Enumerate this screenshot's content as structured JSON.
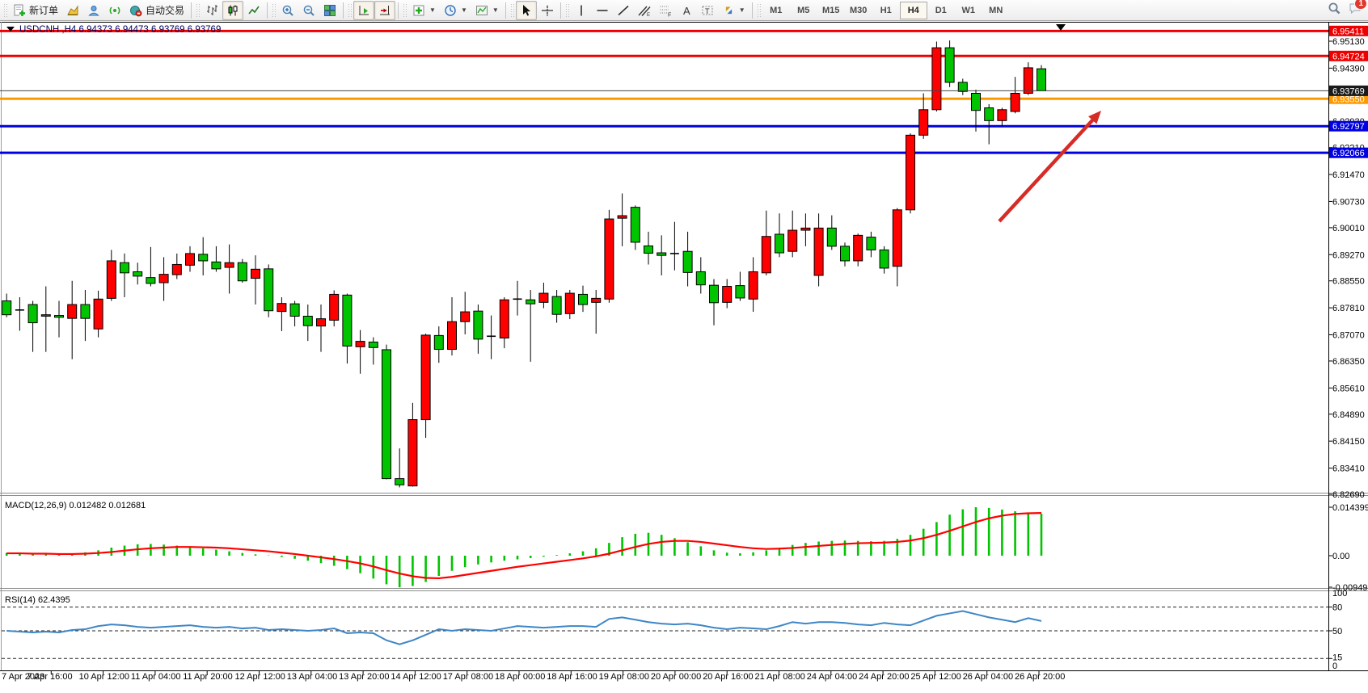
{
  "toolbar": {
    "groups": [
      {
        "items": [
          {
            "icon": "new-order-icon",
            "label": "新订单",
            "name": "new-order-button"
          },
          {
            "icon": "market-chart-icon",
            "name": "chart-window-button"
          },
          {
            "icon": "community-icon",
            "name": "community-button"
          },
          {
            "icon": "signals-icon",
            "name": "signals-button"
          },
          {
            "icon": "autotrading-icon",
            "label": "自动交易",
            "name": "autotrading-button"
          }
        ]
      },
      {
        "items": [
          {
            "icon": "bar-chart-icon",
            "name": "bar-chart-button"
          },
          {
            "icon": "candlestick-icon",
            "name": "candlestick-button",
            "active": true
          },
          {
            "icon": "line-chart-icon",
            "name": "line-chart-button"
          }
        ]
      },
      {
        "items": [
          {
            "icon": "zoom-in-icon",
            "name": "zoom-in-button"
          },
          {
            "icon": "zoom-out-icon",
            "name": "zoom-out-button"
          },
          {
            "icon": "tile-windows-icon",
            "name": "tile-windows-button"
          }
        ]
      },
      {
        "items": [
          {
            "icon": "auto-scroll-icon",
            "name": "auto-scroll-button",
            "active": true
          },
          {
            "icon": "chart-shift-icon",
            "name": "chart-shift-button",
            "active": true
          }
        ]
      },
      {
        "items": [
          {
            "icon": "indicators-icon",
            "name": "indicators-button",
            "dropdown": true
          },
          {
            "icon": "periods-icon",
            "name": "periods-button",
            "dropdown": true
          },
          {
            "icon": "templates-icon",
            "name": "templates-button",
            "dropdown": true
          }
        ]
      },
      {
        "items": [
          {
            "icon": "cursor-icon",
            "name": "cursor-button",
            "active": true
          },
          {
            "icon": "crosshair-icon",
            "name": "crosshair-button"
          }
        ]
      },
      {
        "items": [
          {
            "icon": "vline-icon",
            "name": "vertical-line-button"
          },
          {
            "icon": "hline-icon",
            "name": "horizontal-line-button"
          },
          {
            "icon": "trendline-icon",
            "name": "trendline-button"
          },
          {
            "icon": "channel-icon",
            "name": "equidistant-channel-button"
          },
          {
            "icon": "fibonacci-icon",
            "name": "fibonacci-button"
          },
          {
            "icon": "text-icon",
            "name": "text-button"
          },
          {
            "icon": "label-icon",
            "name": "text-label-button"
          },
          {
            "icon": "arrows-icon",
            "name": "arrows-button",
            "dropdown": true
          }
        ]
      }
    ],
    "timeframes": [
      "M1",
      "M5",
      "M15",
      "M30",
      "H1",
      "H4",
      "D1",
      "W1",
      "MN"
    ],
    "active_timeframe": "H4",
    "chat_badge": "1"
  },
  "chart_data": {
    "type": "candlestick",
    "title": "USDCNH ,H4  6.94373 6.94473 6.93769 6.93769",
    "symbol": "USDCNH",
    "period": "H4",
    "ohlc_display": {
      "open": "6.94373",
      "high": "6.94473",
      "low": "6.93769",
      "close": "6.93769"
    },
    "current_price": "6.93769",
    "price_axis_ticks": [
      "6.95130",
      "6.94390",
      "6.92930",
      "6.92210",
      "6.91470",
      "6.90730",
      "6.90010",
      "6.89270",
      "6.88550",
      "6.87810",
      "6.87070",
      "6.86350",
      "6.85610",
      "6.84890",
      "6.84150",
      "6.83410",
      "6.82690"
    ],
    "horizontal_lines": [
      {
        "price": 6.95411,
        "label": "6.95411",
        "color": "#ee0000",
        "width": 3
      },
      {
        "price": 6.94724,
        "label": "6.94724",
        "color": "#ee0000",
        "width": 3
      },
      {
        "price": 6.9355,
        "label": "6.93550",
        "color": "#ff9900",
        "width": 3
      },
      {
        "price": 6.92797,
        "label": "6.92797",
        "color": "#0000e0",
        "width": 3
      },
      {
        "price": 6.92066,
        "label": "6.92066",
        "color": "#0000e0",
        "width": 3
      }
    ],
    "candles": [
      [
        6.88,
        6.882,
        6.8755,
        6.8762
      ],
      [
        6.8775,
        6.881,
        6.8718,
        6.8772
      ],
      [
        6.879,
        6.88,
        6.866,
        6.874
      ],
      [
        6.8758,
        6.884,
        6.866,
        6.8762
      ],
      [
        6.876,
        6.88,
        6.87,
        6.8755
      ],
      [
        6.8752,
        6.8855,
        6.864,
        6.879
      ],
      [
        6.879,
        6.883,
        6.869,
        6.8752
      ],
      [
        6.8723,
        6.8828,
        6.87,
        6.8805
      ],
      [
        6.8807,
        6.894,
        6.88,
        6.891
      ],
      [
        6.8905,
        6.893,
        6.881,
        6.8877
      ],
      [
        6.888,
        6.8905,
        6.8845,
        6.8868
      ],
      [
        6.8864,
        6.8948,
        6.884,
        6.8848
      ],
      [
        6.885,
        6.892,
        6.88,
        6.8873
      ],
      [
        6.8872,
        6.893,
        6.886,
        6.89
      ],
      [
        6.8898,
        6.895,
        6.888,
        6.893
      ],
      [
        6.8928,
        6.8975,
        6.887,
        6.891
      ],
      [
        6.8907,
        6.895,
        6.888,
        6.8888
      ],
      [
        6.8892,
        6.8955,
        6.882,
        6.8905
      ],
      [
        6.8905,
        6.8915,
        6.885,
        6.8855
      ],
      [
        6.8862,
        6.8925,
        6.879,
        6.8887
      ],
      [
        6.8888,
        6.89,
        6.8755,
        6.8773
      ],
      [
        6.8771,
        6.881,
        6.8717,
        6.8793
      ],
      [
        6.8792,
        6.88,
        6.873,
        6.8758
      ],
      [
        6.8758,
        6.879,
        6.869,
        6.8732
      ],
      [
        6.8731,
        6.879,
        6.866,
        6.8751
      ],
      [
        6.8747,
        6.8829,
        6.873,
        6.8818
      ],
      [
        6.8816,
        6.882,
        6.8628,
        6.8676
      ],
      [
        6.8674,
        6.872,
        6.86,
        6.8689
      ],
      [
        6.8687,
        6.87,
        6.8625,
        6.8672
      ],
      [
        6.8666,
        6.868,
        6.831,
        6.8312
      ],
      [
        6.8312,
        6.8395,
        6.8288,
        6.8295
      ],
      [
        6.8292,
        6.852,
        6.829,
        6.8474
      ],
      [
        6.8474,
        6.871,
        6.8424,
        6.8706
      ],
      [
        6.8705,
        6.873,
        6.863,
        6.8667
      ],
      [
        6.8667,
        6.881,
        6.865,
        6.8743
      ],
      [
        6.8743,
        6.8825,
        6.8708,
        6.877
      ],
      [
        6.8772,
        6.879,
        6.8655,
        6.8695
      ],
      [
        6.87,
        6.876,
        6.864,
        6.8703
      ],
      [
        6.8698,
        6.881,
        6.867,
        6.8803
      ],
      [
        6.8803,
        6.8855,
        6.876,
        6.8805
      ],
      [
        6.8803,
        6.883,
        6.8633,
        6.8792
      ],
      [
        6.8796,
        6.885,
        6.878,
        6.8821
      ],
      [
        6.8812,
        6.883,
        6.874,
        6.8763
      ],
      [
        6.8765,
        6.883,
        6.875,
        6.8821
      ],
      [
        6.8818,
        6.8842,
        6.877,
        6.879
      ],
      [
        6.8796,
        6.883,
        6.871,
        6.8807
      ],
      [
        6.8805,
        6.905,
        6.8795,
        6.9025
      ],
      [
        6.9027,
        6.9095,
        6.895,
        6.9034
      ],
      [
        6.9057,
        6.9062,
        6.894,
        6.8961
      ],
      [
        6.8951,
        6.899,
        6.89,
        6.8931
      ],
      [
        6.8932,
        6.898,
        6.887,
        6.8925
      ],
      [
        6.893,
        6.9017,
        6.8884,
        6.8928
      ],
      [
        6.8936,
        6.899,
        6.884,
        6.8878
      ],
      [
        6.888,
        6.892,
        6.882,
        6.8844
      ],
      [
        6.8843,
        6.886,
        6.8733,
        6.8795
      ],
      [
        6.8796,
        6.886,
        6.878,
        6.884
      ],
      [
        6.8842,
        6.888,
        6.88,
        6.8808
      ],
      [
        6.8805,
        6.892,
        6.877,
        6.888
      ],
      [
        6.8877,
        6.9048,
        6.887,
        6.8977
      ],
      [
        6.8983,
        6.904,
        6.892,
        6.8932
      ],
      [
        6.8936,
        6.9048,
        6.892,
        6.8994
      ],
      [
        6.8994,
        6.904,
        6.895,
        6.9
      ],
      [
        6.887,
        6.904,
        6.884,
        6.9
      ],
      [
        6.9,
        6.9035,
        6.894,
        6.895
      ],
      [
        6.895,
        6.896,
        6.8895,
        6.891
      ],
      [
        6.891,
        6.8985,
        6.8895,
        6.898
      ],
      [
        6.8975,
        6.899,
        6.892,
        6.894
      ],
      [
        6.894,
        6.895,
        6.8875,
        6.889
      ],
      [
        6.8895,
        6.9055,
        6.884,
        6.905
      ],
      [
        6.905,
        6.926,
        6.904,
        6.9255
      ],
      [
        6.9255,
        6.937,
        6.9245,
        6.9325
      ],
      [
        6.9325,
        6.9512,
        6.932,
        6.9495
      ],
      [
        6.9495,
        6.9515,
        6.9387,
        6.94
      ],
      [
        6.94,
        6.941,
        6.9365,
        6.9375
      ],
      [
        6.937,
        6.938,
        6.9265,
        6.9323
      ],
      [
        6.933,
        6.934,
        6.923,
        6.9295
      ],
      [
        6.9295,
        6.933,
        6.928,
        6.9325
      ],
      [
        6.932,
        6.9415,
        6.9315,
        6.937
      ],
      [
        6.937,
        6.9455,
        6.9365,
        6.944
      ],
      [
        6.94373,
        6.94473,
        6.93769,
        6.93769
      ]
    ],
    "macd": {
      "label": "MACD(12,26,9) 0.012482 0.012681",
      "axis_labels": [
        "0.014399",
        "0.00",
        "-0.009491"
      ],
      "histogram": [
        0.0008,
        0.0007,
        0.0005,
        0.0004,
        0.0004,
        0.0006,
        0.001,
        0.0016,
        0.0024,
        0.003,
        0.0034,
        0.0035,
        0.0033,
        0.003,
        0.0026,
        0.0022,
        0.0018,
        0.0013,
        0.0008,
        0.0004,
        0.0001,
        -0.0004,
        -0.0009,
        -0.0015,
        -0.0022,
        -0.003,
        -0.004,
        -0.0052,
        -0.0068,
        -0.0085,
        -0.0094,
        -0.009,
        -0.0078,
        -0.006,
        -0.0045,
        -0.0034,
        -0.0026,
        -0.002,
        -0.0015,
        -0.0011,
        -0.0007,
        -0.0003,
        0.0002,
        0.0007,
        0.0013,
        0.0022,
        0.0038,
        0.0055,
        0.0065,
        0.0068,
        0.0062,
        0.0052,
        0.004,
        0.0028,
        0.0016,
        0.0009,
        0.0007,
        0.001,
        0.0016,
        0.0024,
        0.0032,
        0.0038,
        0.0042,
        0.0044,
        0.0045,
        0.0044,
        0.0043,
        0.0044,
        0.005,
        0.0062,
        0.008,
        0.01,
        0.0122,
        0.0138,
        0.0144,
        0.0142,
        0.0137,
        0.0132,
        0.0128,
        0.012482
      ],
      "signal": [
        0.0007,
        0.0007,
        0.0006,
        0.0006,
        0.0005,
        0.0005,
        0.0006,
        0.0008,
        0.0011,
        0.0015,
        0.0019,
        0.0022,
        0.0024,
        0.0026,
        0.0026,
        0.0025,
        0.0024,
        0.0022,
        0.0019,
        0.0016,
        0.0013,
        0.0009,
        0.0005,
        0.0,
        -0.0005,
        -0.001,
        -0.0016,
        -0.0023,
        -0.0032,
        -0.0043,
        -0.0053,
        -0.0061,
        -0.0066,
        -0.0067,
        -0.0063,
        -0.0057,
        -0.0051,
        -0.0045,
        -0.0039,
        -0.0033,
        -0.0028,
        -0.0023,
        -0.0018,
        -0.0013,
        -0.0008,
        -0.0002,
        0.0006,
        0.0016,
        0.0026,
        0.0035,
        0.0041,
        0.0044,
        0.0044,
        0.0041,
        0.0036,
        0.0031,
        0.0026,
        0.0022,
        0.002,
        0.0021,
        0.0023,
        0.0026,
        0.0029,
        0.0032,
        0.0035,
        0.0037,
        0.0038,
        0.0039,
        0.0041,
        0.0045,
        0.0052,
        0.0062,
        0.0074,
        0.0087,
        0.01,
        0.0111,
        0.0119,
        0.0124,
        0.0126,
        0.012681
      ]
    },
    "rsi": {
      "label": "RSI(14) 62.4395",
      "axis_labels": [
        "100",
        "80",
        "50",
        "15",
        "0"
      ],
      "levels": [
        80,
        50,
        15
      ],
      "values": [
        50,
        49,
        48,
        49,
        48,
        51,
        52,
        56,
        58,
        57,
        55,
        54,
        55,
        56,
        57,
        55,
        54,
        55,
        53,
        54,
        51,
        52,
        51,
        50,
        51,
        53,
        47,
        48,
        47,
        38,
        33,
        38,
        45,
        52,
        50,
        52,
        51,
        50,
        53,
        56,
        55,
        54,
        55,
        56,
        56,
        55,
        65,
        67,
        64,
        61,
        59,
        58,
        59,
        57,
        54,
        52,
        54,
        53,
        52,
        56,
        61,
        59,
        61,
        61,
        60,
        58,
        57,
        60,
        58,
        57,
        63,
        69,
        72,
        75,
        71,
        67,
        64,
        61,
        66,
        62.4
      ]
    },
    "time_labels": [
      "7 Apr 2023",
      "7 Apr 16:00",
      "10 Apr 12:00",
      "11 Apr 04:00",
      "11 Apr 20:00",
      "12 Apr 12:00",
      "13 Apr 04:00",
      "13 Apr 20:00",
      "14 Apr 12:00",
      "17 Apr 08:00",
      "18 Apr 00:00",
      "18 Apr 16:00",
      "19 Apr 08:00",
      "20 Apr 00:00",
      "20 Apr 16:00",
      "21 Apr 08:00",
      "24 Apr 04:00",
      "24 Apr 20:00",
      "25 Apr 12:00",
      "26 Apr 04:00",
      "26 Apr 20:00"
    ],
    "colors": {
      "bull": "#ff0000",
      "bear": "#00c400",
      "outline": "#000000",
      "macd_hist": "#00c400",
      "macd_signal": "#ff0000",
      "rsi_line": "#3e86c6",
      "current_price_line": "#444444",
      "current_price_label_bg": "#1a1a1a",
      "arrow": "#d62c25",
      "title_color": "#00005a"
    },
    "legend_position": "top-left",
    "grid": "off"
  }
}
